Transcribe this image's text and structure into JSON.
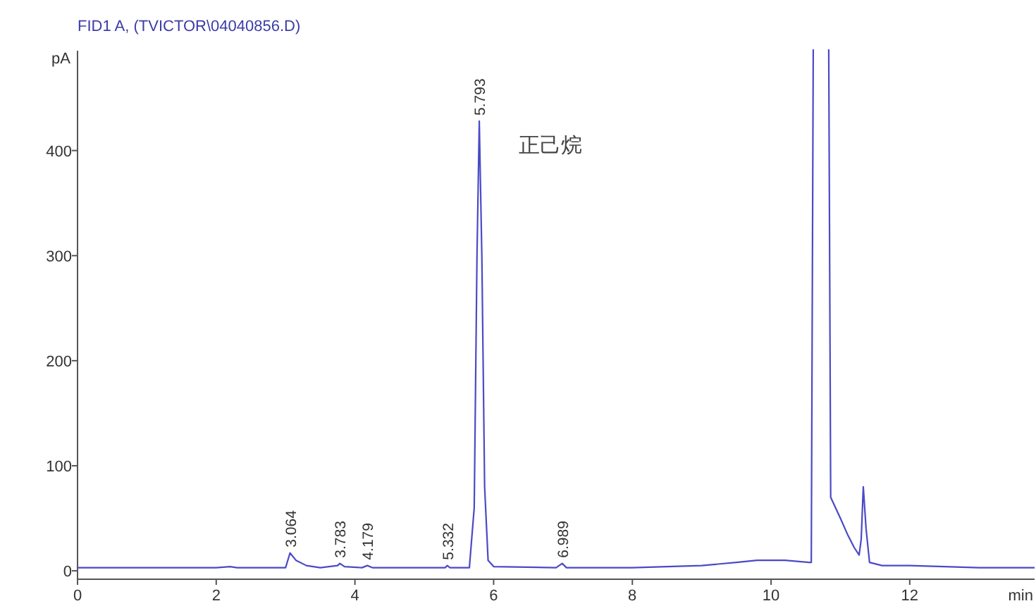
{
  "chart_data": {
    "type": "line",
    "title": "FID1 A,  (TVICTOR\\04040856.D)",
    "ylabel": "pA",
    "xlabel": "min",
    "xlim": [
      0,
      13.8
    ],
    "ylim": [
      -8,
      495
    ],
    "xticks": [
      0,
      2,
      4,
      6,
      8,
      10,
      12
    ],
    "yticks": [
      0,
      100,
      200,
      300,
      400
    ],
    "grid": false,
    "series": [
      {
        "color": "#4a4ac8",
        "x": [
          0,
          2.0,
          2.2,
          2.3,
          3.0,
          3.064,
          3.15,
          3.3,
          3.5,
          3.75,
          3.783,
          3.85,
          4.1,
          4.179,
          4.25,
          5.3,
          5.332,
          5.37,
          5.65,
          5.72,
          5.76,
          5.793,
          5.83,
          5.87,
          5.92,
          6.0,
          6.9,
          6.989,
          7.05,
          8.0,
          9.0,
          9.5,
          9.8,
          10.2,
          10.55,
          10.58,
          10.61,
          10.83,
          10.86,
          11.0,
          11.1,
          11.2,
          11.27,
          11.3,
          11.33,
          11.37,
          11.42,
          11.6,
          12.0,
          12.5,
          13.0,
          13.8
        ],
        "values": [
          3,
          3,
          4,
          3,
          3,
          17,
          10,
          5,
          3,
          5,
          7,
          4,
          3,
          5,
          3,
          3,
          5,
          3,
          3,
          60,
          300,
          428,
          300,
          80,
          10,
          4,
          3,
          7,
          3,
          3,
          5,
          8,
          10,
          10,
          8,
          8,
          null,
          null,
          70,
          50,
          35,
          22,
          15,
          30,
          80,
          40,
          8,
          5,
          5,
          4,
          3,
          3
        ]
      }
    ],
    "annotations": [
      {
        "text": "3.064",
        "x": 3.064,
        "y": 17
      },
      {
        "text": "3.783",
        "x": 3.783,
        "y": 7
      },
      {
        "text": "4.179",
        "x": 4.179,
        "y": 5
      },
      {
        "text": "5.332",
        "x": 5.332,
        "y": 5
      },
      {
        "text": "5.793",
        "x": 5.793,
        "y": 428
      },
      {
        "text": "6.989",
        "x": 6.989,
        "y": 7
      },
      "正己烷"
    ]
  }
}
